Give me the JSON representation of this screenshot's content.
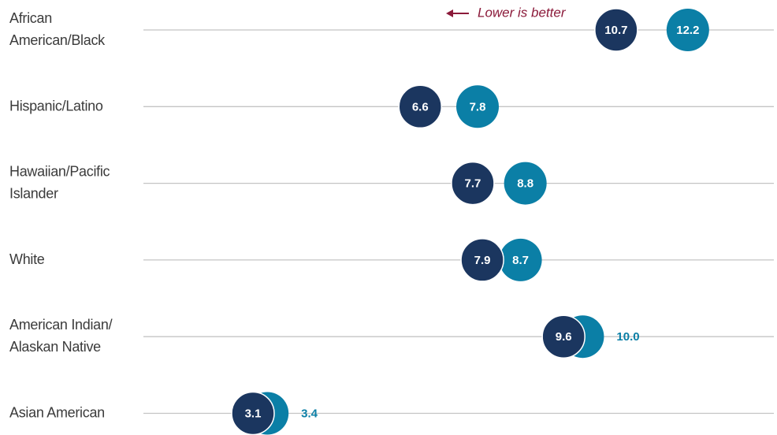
{
  "chart_data": {
    "type": "dot",
    "annotation": "Lower is better",
    "annotation_color": "#8b1a3a",
    "categories": [
      "African\nAmerican/Black",
      "Hispanic/Latino",
      "Hawaiian/Pacific\nIslander",
      "White",
      "American Indian/\nAlaskan Native",
      "Asian American"
    ],
    "series": [
      {
        "color": "#0b7fa6",
        "values": [
          12.2,
          7.8,
          8.8,
          8.7,
          10.0,
          3.4
        ],
        "value_labels": [
          "12.2",
          "7.8",
          "8.8",
          "8.7",
          "10.0",
          "3.4"
        ]
      },
      {
        "color": "#1b365f",
        "values": [
          10.7,
          6.6,
          7.7,
          7.9,
          9.6,
          3.1
        ],
        "value_labels": [
          "10.7",
          "6.6",
          "7.7",
          "7.9",
          "9.6",
          "3.1"
        ]
      }
    ],
    "xlim": [
      0,
      14
    ]
  }
}
